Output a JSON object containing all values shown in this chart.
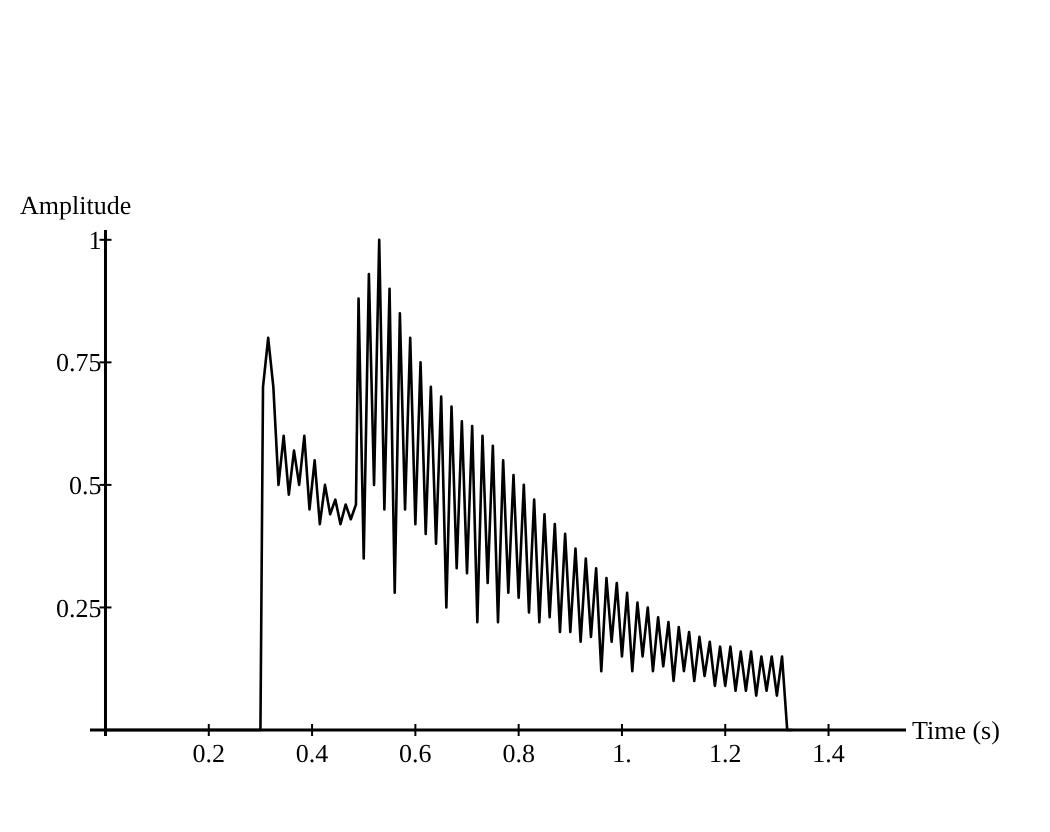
{
  "chart_data": {
    "type": "line",
    "xlabel": "Time (s)",
    "ylabel": "Amplitude",
    "xlim": [
      -0.03,
      1.55
    ],
    "ylim": [
      0,
      1.02
    ],
    "xticks": [
      0.2,
      0.4,
      0.6,
      0.8,
      {
        "value": 1,
        "label": "1."
      },
      1.2,
      1.4
    ],
    "yticks": [
      0.25,
      0.5,
      0.75,
      1
    ],
    "grid": false,
    "marker": "none",
    "line_style": "solid",
    "series": [
      {
        "color": "#000000",
        "x": [
          0,
          0.3,
          0.305,
          0.315,
          0.325,
          0.335,
          0.345,
          0.355,
          0.365,
          0.375,
          0.385,
          0.395,
          0.405,
          0.415,
          0.425,
          0.435,
          0.445,
          0.455,
          0.465,
          0.475,
          0.485,
          0.49,
          0.5,
          0.51,
          0.52,
          0.53,
          0.54,
          0.55,
          0.56,
          0.57,
          0.58,
          0.59,
          0.6,
          0.61,
          0.62,
          0.63,
          0.64,
          0.65,
          0.66,
          0.67,
          0.68,
          0.69,
          0.7,
          0.71,
          0.72,
          0.73,
          0.74,
          0.75,
          0.76,
          0.77,
          0.78,
          0.79,
          0.8,
          0.81,
          0.82,
          0.83,
          0.84,
          0.85,
          0.86,
          0.87,
          0.88,
          0.89,
          0.9,
          0.91,
          0.92,
          0.93,
          0.94,
          0.95,
          0.96,
          0.97,
          0.98,
          0.99,
          1,
          1.01,
          1.02,
          1.03,
          1.04,
          1.05,
          1.06,
          1.07,
          1.08,
          1.09,
          1.1,
          1.11,
          1.12,
          1.13,
          1.14,
          1.15,
          1.16,
          1.17,
          1.18,
          1.19,
          1.2,
          1.21,
          1.22,
          1.23,
          1.24,
          1.25,
          1.26,
          1.27,
          1.28,
          1.29,
          1.3,
          1.31,
          1.32,
          1.33
        ],
        "values": [
          0,
          0,
          0.7,
          0.8,
          0.7,
          0.5,
          0.6,
          0.48,
          0.57,
          0.5,
          0.6,
          0.45,
          0.55,
          0.42,
          0.5,
          0.44,
          0.47,
          0.42,
          0.46,
          0.43,
          0.46,
          0.88,
          0.35,
          0.93,
          0.5,
          1.0,
          0.45,
          0.9,
          0.28,
          0.85,
          0.45,
          0.8,
          0.42,
          0.75,
          0.4,
          0.7,
          0.38,
          0.68,
          0.25,
          0.66,
          0.33,
          0.63,
          0.32,
          0.62,
          0.22,
          0.6,
          0.3,
          0.58,
          0.22,
          0.55,
          0.28,
          0.52,
          0.27,
          0.5,
          0.24,
          0.47,
          0.22,
          0.44,
          0.23,
          0.42,
          0.2,
          0.4,
          0.2,
          0.37,
          0.18,
          0.35,
          0.19,
          0.33,
          0.12,
          0.31,
          0.18,
          0.3,
          0.15,
          0.28,
          0.12,
          0.26,
          0.15,
          0.25,
          0.12,
          0.23,
          0.13,
          0.22,
          0.1,
          0.21,
          0.12,
          0.2,
          0.1,
          0.19,
          0.11,
          0.18,
          0.09,
          0.17,
          0.09,
          0.17,
          0.08,
          0.16,
          0.08,
          0.16,
          0.07,
          0.15,
          0.08,
          0.15,
          0.07,
          0.15,
          0,
          0
        ]
      }
    ]
  }
}
